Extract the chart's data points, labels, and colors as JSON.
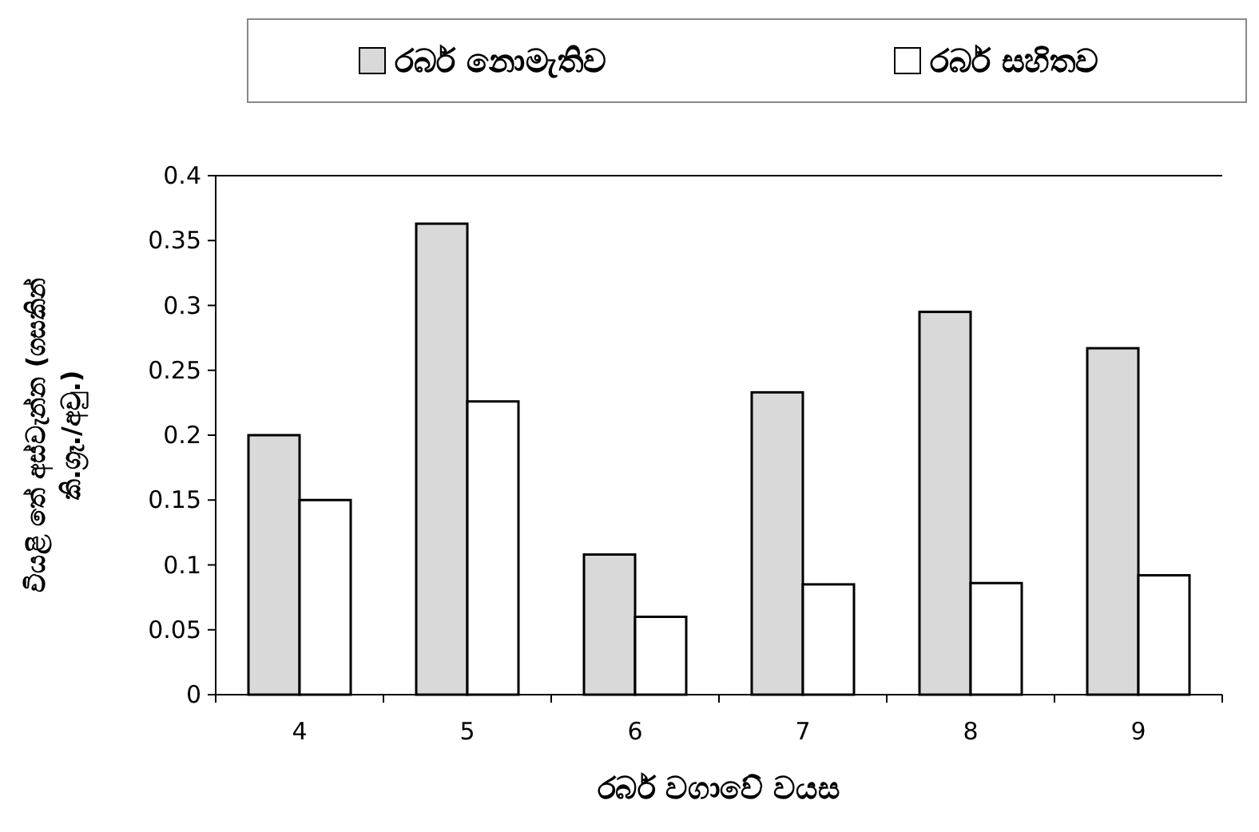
{
  "chart_data": {
    "type": "bar",
    "xlabel": "රබර් වගාවේ වයස",
    "ylabel": "වියළි තේ අස්වැන්න (ගසකින් කි.ග්‍රෑ./අවු.)",
    "categories": [
      "4",
      "5",
      "6",
      "7",
      "8",
      "9"
    ],
    "series": [
      {
        "name": "රබර් නොමැතිව",
        "color": "#d9d9d9",
        "values": [
          0.2,
          0.363,
          0.108,
          0.233,
          0.295,
          0.267
        ]
      },
      {
        "name": "රබර් සහිතව",
        "color": "#ffffff",
        "values": [
          0.15,
          0.226,
          0.06,
          0.085,
          0.086,
          0.092
        ]
      }
    ],
    "ylim": [
      0,
      0.4
    ],
    "yticks": [
      0,
      0.05,
      0.1,
      0.15,
      0.2,
      0.25,
      0.3,
      0.35,
      0.4
    ],
    "legend": "top",
    "grid": false
  }
}
